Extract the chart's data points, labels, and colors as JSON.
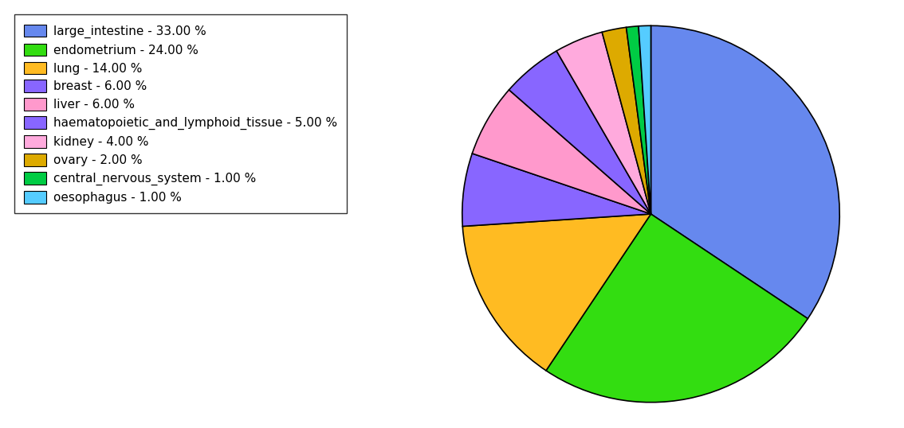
{
  "labels": [
    "large_intestine - 33.00 %",
    "endometrium - 24.00 %",
    "lung - 14.00 %",
    "breast - 6.00 %",
    "liver - 6.00 %",
    "haematopoietic_and_lymphoid_tissue - 5.00 %",
    "kidney - 4.00 %",
    "ovary - 2.00 %",
    "central_nervous_system - 1.00 %",
    "oesophagus - 1.00 %"
  ],
  "values": [
    33,
    24,
    14,
    6,
    6,
    5,
    4,
    2,
    1,
    1
  ],
  "colors": [
    "#6688ee",
    "#44dd00",
    "#ffbb00",
    "#8877ff",
    "#ff99cc",
    "#8877ff",
    "#ffaadd",
    "#ddaa00",
    "#00bb44",
    "#55ccff"
  ],
  "pie_colors": [
    "#6688ee",
    "#44dd00",
    "#ffbb00",
    "#8877ff",
    "#ff99cc",
    "#8877ff",
    "#ffaadd",
    "#ddaa00",
    "#00bb44",
    "#55ccff"
  ],
  "startangle": 90,
  "figsize": [
    11.34,
    5.38
  ],
  "dpi": 100
}
